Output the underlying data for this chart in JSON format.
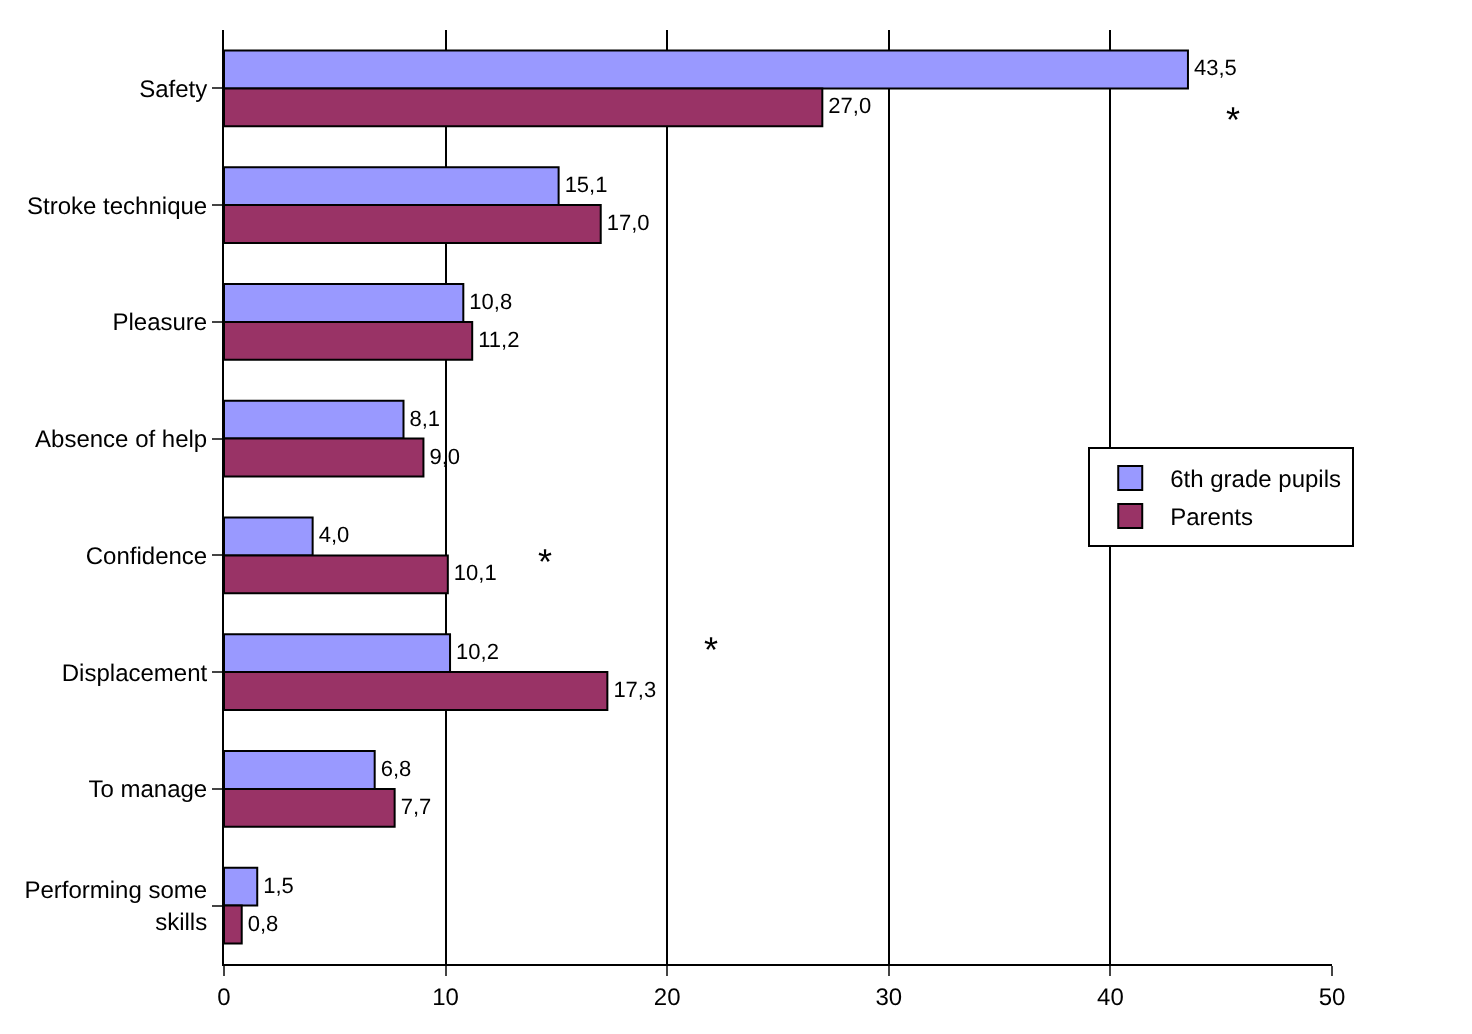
{
  "chart_data": {
    "type": "bar",
    "orientation": "horizontal",
    "categories": [
      "Safety",
      "Stroke technique",
      "Pleasure",
      "Absence of help",
      "Confidence",
      "Displacement",
      "To manage",
      "Performing some skills"
    ],
    "series": [
      {
        "name": "6th grade pupils",
        "color": "#9999ff",
        "values": [
          43.5,
          15.1,
          10.8,
          8.1,
          4.0,
          10.2,
          6.8,
          1.5
        ],
        "value_labels": [
          "43,5",
          "15,1",
          "10,8",
          "8,1",
          "4,0",
          "10,2",
          "6,8",
          "1,5"
        ]
      },
      {
        "name": "Parents",
        "color": "#993366",
        "values": [
          27.0,
          17.0,
          11.2,
          9.0,
          10.1,
          17.3,
          7.7,
          0.8
        ],
        "value_labels": [
          "27,0",
          "17,0",
          "11,2",
          "9,0",
          "10,1",
          "17,3",
          "7,7",
          "0,8"
        ]
      }
    ],
    "xlim": [
      0,
      50
    ],
    "xticks": [
      0,
      10,
      20,
      30,
      40,
      50
    ],
    "grid": "x",
    "legend": "right",
    "annotations": [
      "*",
      "*",
      "*"
    ]
  }
}
